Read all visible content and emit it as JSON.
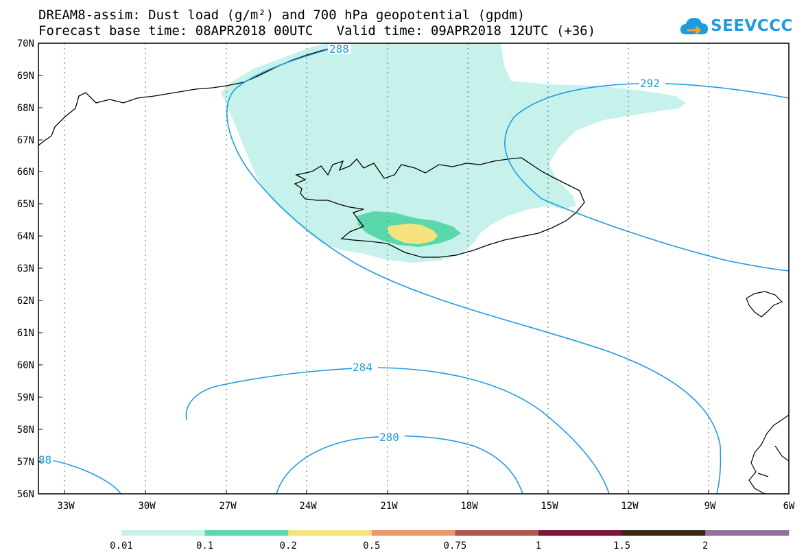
{
  "title": {
    "line1": "DREAM8-assim: Dust load (g/m²) and 700 hPa geopotential (gpdm)",
    "line2": "Forecast base time: 08APR2018 00UTC   Valid time: 09APR2018 12UTC (+36)"
  },
  "logo": {
    "text": "SEEVCCC",
    "icon": "cloud-icon"
  },
  "map": {
    "lat_labels": [
      "70N",
      "69N",
      "68N",
      "67N",
      "66N",
      "65N",
      "64N",
      "63N",
      "62N",
      "61N",
      "60N",
      "59N",
      "58N",
      "57N",
      "56N"
    ],
    "lon_labels": [
      "33W",
      "30W",
      "27W",
      "24W",
      "21W",
      "18W",
      "15W",
      "12W",
      "9W",
      "6W"
    ],
    "contour_labels": [
      "288",
      "292",
      "284",
      "280",
      "88"
    ]
  },
  "legend": {
    "levels": [
      "0.01",
      "0.1",
      "0.2",
      "0.5",
      "0.75",
      "1",
      "1.5",
      "2"
    ],
    "colors": [
      "#c6f2eb",
      "#5bd8ab",
      "#f5e47e",
      "#e89a6e",
      "#b0574e",
      "#7f1436",
      "#3a2816",
      "#94709c"
    ]
  }
}
